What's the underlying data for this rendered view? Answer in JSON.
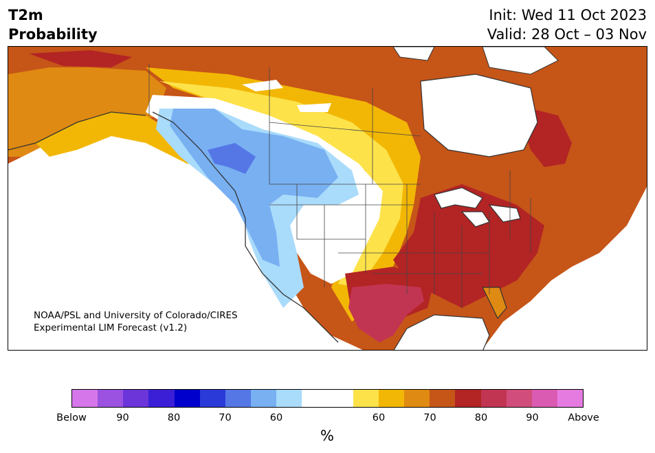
{
  "header": {
    "variable": "T2m",
    "product": "Probability",
    "init": "Init: Wed 11 Oct 2023",
    "valid": "Valid: 28 Oct – 03 Nov"
  },
  "credit": {
    "line1": "NOAA/PSL and University of Colorado/CIRES",
    "line2": "Experimental LIM Forecast (v1.2)"
  },
  "colorbar": {
    "unit": "%",
    "colors": [
      "#d577ea",
      "#9b52e0",
      "#6b35da",
      "#3a1fd6",
      "#0000cd",
      "#2a3ad9",
      "#5577e6",
      "#78b0f2",
      "#a9dbfb",
      "#ffffff",
      "#ffffff",
      "#fde24a",
      "#f2b705",
      "#df8a12",
      "#c65518",
      "#b32424",
      "#c23552",
      "#d14d7b",
      "#da5bb2",
      "#e57be0"
    ],
    "labels": [
      "Below",
      "90",
      "80",
      "70",
      "60",
      "60",
      "70",
      "80",
      "90",
      "Above"
    ],
    "label_edges": [
      0,
      2,
      4,
      6,
      8,
      12,
      14,
      16,
      18,
      20
    ]
  },
  "map_legend_meaning": {
    "cold_side": "Below",
    "warm_side": "Above"
  }
}
